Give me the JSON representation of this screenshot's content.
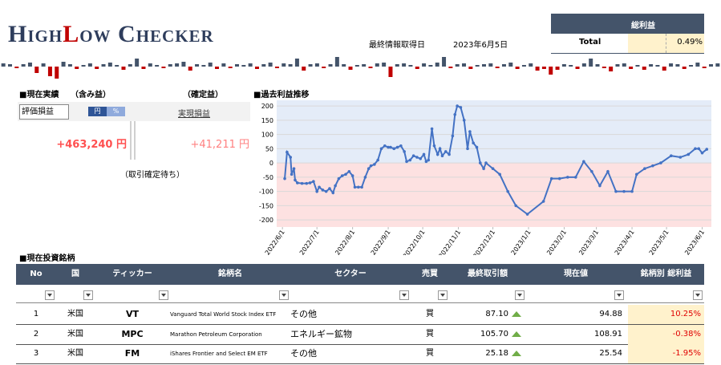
{
  "header": {
    "logo": [
      "High",
      "L",
      "ow Checker"
    ],
    "update_label": "最終情報取得日",
    "update_date": "2023年6月5日"
  },
  "summary": {
    "header": "総利益",
    "label": "Total",
    "value": "0.49%"
  },
  "daily_bars": {
    "up_color": "#44546a",
    "down_color": "#c00000",
    "values": [
      4,
      3,
      -2,
      3,
      5,
      -8,
      4,
      -12,
      -15,
      6,
      3,
      -3,
      2,
      4,
      -3,
      3,
      5,
      2,
      -4,
      3,
      10,
      -3,
      4,
      2,
      -2,
      3,
      4,
      6,
      -5,
      3,
      2,
      5,
      -3,
      4,
      -2,
      3,
      2,
      4,
      -3,
      3,
      5,
      -2,
      4,
      3,
      10,
      -5,
      3,
      4,
      -2,
      3,
      12,
      3,
      -4,
      2,
      3,
      -2,
      4,
      5,
      -13,
      3,
      4,
      2,
      -3,
      4,
      2,
      5,
      12,
      -2,
      3,
      4,
      -3,
      2,
      3,
      4,
      -2,
      3,
      5,
      -3,
      2,
      4,
      -5,
      -3,
      -10,
      -4,
      3,
      2,
      -3,
      4,
      10,
      3,
      -2,
      -6,
      3,
      4,
      -3,
      2,
      -4,
      3,
      2,
      -5,
      4,
      3,
      -3,
      2,
      5,
      -2,
      3,
      4
    ]
  },
  "performance": {
    "title": "■現在実績",
    "unrealized_label": "（含み益）",
    "realized_label": "（確定益）",
    "select": "評価損益",
    "toggle": [
      "円",
      "%"
    ],
    "realized_link": "実現損益",
    "unrealized_value": "+463,240 円",
    "realized_value": "+41,211 円",
    "pending": "（取引確定待ち）"
  },
  "chart_data": {
    "type": "line",
    "title": "■過去利益推移",
    "x": [
      "2022/6/3",
      "2022/6/5",
      "2022/6/8",
      "2022/6/9",
      "2022/6/11",
      "2022/6/12",
      "2022/6/14",
      "2022/6/18",
      "2022/6/22",
      "2022/6/25",
      "2022/6/28",
      "2022/7/1",
      "2022/7/3",
      "2022/7/6",
      "2022/7/9",
      "2022/7/12",
      "2022/7/15",
      "2022/7/17",
      "2022/7/20",
      "2022/7/23",
      "2022/7/26",
      "2022/7/29",
      "2022/8/1",
      "2022/8/3",
      "2022/8/6",
      "2022/8/9",
      "2022/8/12",
      "2022/8/15",
      "2022/8/17",
      "2022/8/20",
      "2022/8/23",
      "2022/8/26",
      "2022/8/29",
      "2022/9/1",
      "2022/9/3",
      "2022/9/6",
      "2022/9/9",
      "2022/9/12",
      "2022/9/15",
      "2022/9/17",
      "2022/9/20",
      "2022/9/23",
      "2022/9/26",
      "2022/9/29",
      "2022/10/2",
      "2022/10/4",
      "2022/10/6",
      "2022/10/9",
      "2022/10/11",
      "2022/10/14",
      "2022/10/16",
      "2022/10/18",
      "2022/10/21",
      "2022/10/24",
      "2022/10/27",
      "2022/10/29",
      "2022/10/31",
      "2022/11/3",
      "2022/11/6",
      "2022/11/9",
      "2022/11/11",
      "2022/11/14",
      "2022/11/17",
      "2022/11/20",
      "2022/11/23",
      "2022/11/25",
      "2022/12/1",
      "2022/12/7",
      "2022/12/14",
      "2022/12/21",
      "2022/12/31",
      "2023/1/14",
      "2023/1/21",
      "2023/1/28",
      "2023/2/4",
      "2023/2/11",
      "2023/2/18",
      "2023/2/25",
      "2023/3/4",
      "2023/3/11",
      "2023/3/18",
      "2023/3/25",
      "2023/4/1",
      "2023/4/5",
      "2023/4/12",
      "2023/4/19",
      "2023/4/26",
      "2023/5/5",
      "2023/5/13",
      "2023/5/20",
      "2023/5/26",
      "2023/5/29",
      "2023/6/1",
      "2023/6/5"
    ],
    "series": [
      {
        "color": "#4472c4",
        "values": [
          -55,
          38,
          20,
          -40,
          -20,
          -60,
          -70,
          -72,
          -72,
          -70,
          -65,
          -100,
          -85,
          -95,
          -100,
          -90,
          -105,
          -80,
          -55,
          -45,
          -40,
          -30,
          -45,
          -85,
          -85,
          -85,
          -50,
          -20,
          -10,
          -5,
          10,
          50,
          60,
          55,
          55,
          50,
          55,
          60,
          40,
          5,
          10,
          25,
          20,
          15,
          30,
          5,
          10,
          120,
          60,
          30,
          50,
          25,
          40,
          30,
          95,
          170,
          200,
          195,
          150,
          50,
          110,
          70,
          55,
          0,
          -20,
          0,
          -20,
          -40,
          -100,
          -150,
          -180,
          -135,
          -55,
          -55,
          -50,
          -50,
          5,
          -30,
          -80,
          -30,
          -100,
          -100,
          -100,
          -40,
          -20,
          -10,
          0,
          25,
          20,
          30,
          50,
          50,
          35,
          48
        ]
      }
    ],
    "xlim": [
      "2022/5/27",
      "2023/6/9"
    ],
    "xticks": [
      "2022/6/1",
      "2022/7/1",
      "2022/8/1",
      "2022/9/1",
      "2022/10/1",
      "2022/11/1",
      "2022/12/1",
      "2023/1/1",
      "2023/2/1",
      "2023/3/1",
      "2023/4/1",
      "2023/5/1",
      "2023/6/1"
    ],
    "ylim": [
      -225,
      220
    ],
    "yticks": [
      -200,
      -150,
      -100,
      -50,
      0,
      50,
      100,
      150,
      200
    ],
    "positive_fill": "#e4ecf8",
    "negative_fill": "#fde1e1",
    "grid": true
  },
  "holdings": {
    "title": "■現在投資銘柄",
    "columns": [
      "No",
      "国",
      "ティッカー",
      "銘柄名",
      "セクター",
      "売買",
      "最終取引額",
      "現在値",
      "銘柄別 総利益"
    ],
    "rows": [
      [
        "1",
        "米国",
        "VT",
        "Vanguard Total World Stock Index ETF",
        "その他",
        "買",
        "87.10",
        "94.88",
        "10.25%"
      ],
      [
        "2",
        "米国",
        "MPC",
        "Marathon Petroleum Corporation",
        "エネルギー鉱物",
        "買",
        "105.70",
        "108.91",
        "-0.38%"
      ],
      [
        "3",
        "米国",
        "FM",
        "iShares Frontier and Select EM ETF",
        "その他",
        "買",
        "25.18",
        "25.54",
        "-1.95%"
      ]
    ]
  }
}
